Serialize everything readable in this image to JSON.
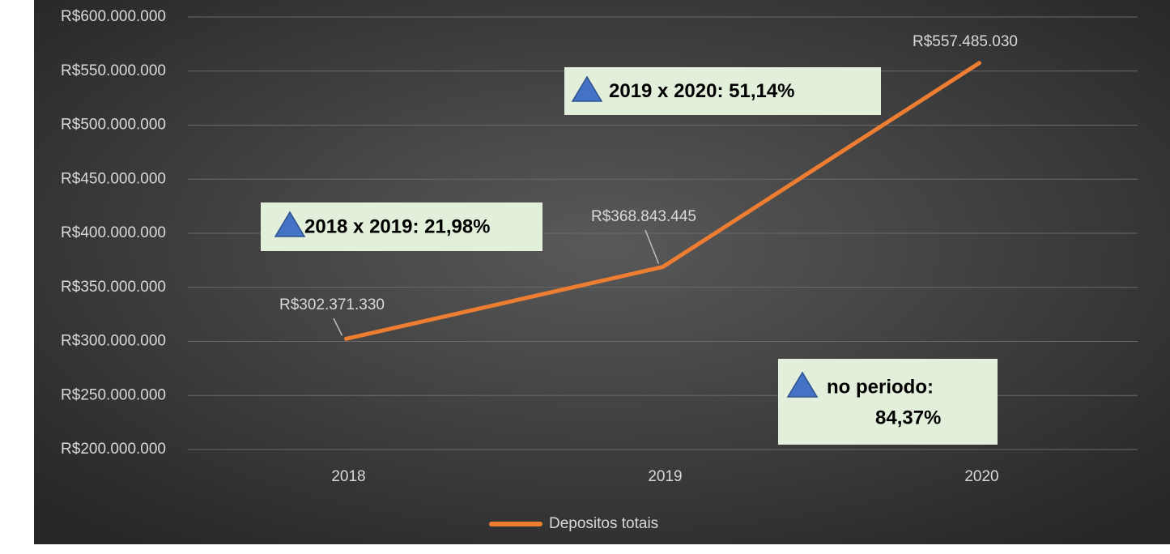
{
  "chart_data": {
    "type": "line",
    "categories": [
      "2018",
      "2019",
      "2020"
    ],
    "series": [
      {
        "name": "Depositos totais",
        "color": "#ed7d31",
        "values": [
          302371330,
          368843445,
          557485030
        ],
        "value_labels": [
          "R$302.371.330",
          "R$368.843.445",
          "R$557.485.030"
        ]
      }
    ],
    "ylim": [
      200000000,
      600000000
    ],
    "yticks": [
      {
        "value": 200000000,
        "label": "R$200.000.000"
      },
      {
        "value": 250000000,
        "label": "R$250.000.000"
      },
      {
        "value": 300000000,
        "label": "R$300.000.000"
      },
      {
        "value": 350000000,
        "label": "R$350.000.000"
      },
      {
        "value": 400000000,
        "label": "R$400.000.000"
      },
      {
        "value": 450000000,
        "label": "R$450.000.000"
      },
      {
        "value": 500000000,
        "label": "R$500.000.000"
      },
      {
        "value": 550000000,
        "label": "R$550.000.000"
      },
      {
        "value": 600000000,
        "label": "R$600.000.000"
      }
    ],
    "grid": true,
    "legend": "bottom",
    "annotations": [
      {
        "lines": [
          "2018 x 2019: 21,98%"
        ]
      },
      {
        "lines": [
          "2019 x 2020: 51,14%"
        ]
      },
      {
        "lines": [
          "no periodo:",
          "84,37%"
        ]
      }
    ]
  }
}
